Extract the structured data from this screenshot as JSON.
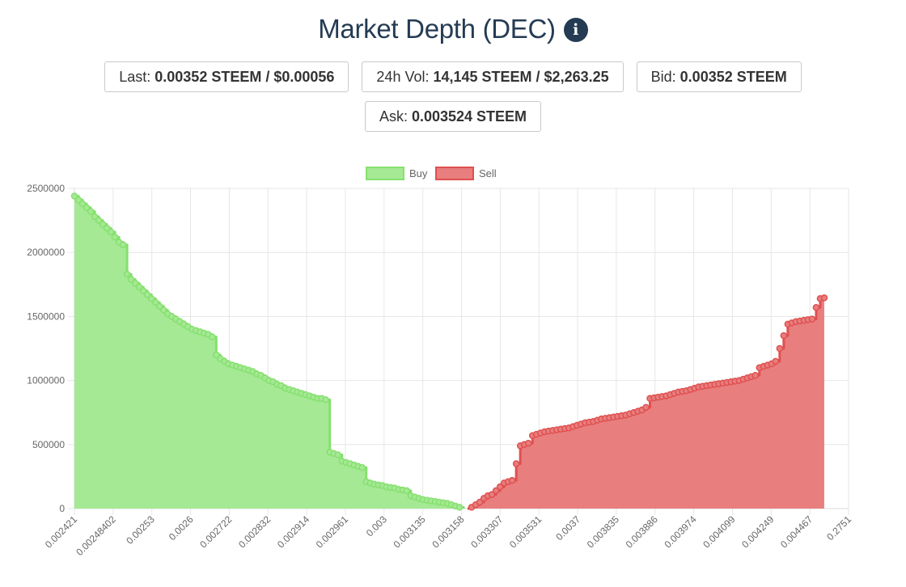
{
  "header": {
    "title": "Market Depth (DEC)",
    "info_icon": "info-icon",
    "info_glyph": "i"
  },
  "stats": {
    "last": {
      "label": "Last:",
      "value": "0.00352 STEEM / $0.00056"
    },
    "volume": {
      "label": "24h Vol:",
      "value": "14,145 STEEM / $2,263.25"
    },
    "bid": {
      "label": "Bid:",
      "value": "0.00352 STEEM"
    },
    "ask": {
      "label": "Ask:",
      "value": "0.003524 STEEM"
    }
  },
  "colors": {
    "buy_fill": "#a5e994",
    "buy_line": "#86e06f",
    "sell_fill": "#e87e7e",
    "sell_line": "#e05050",
    "grid": "#e6e6e6",
    "tick_text": "#666666",
    "title": "#243b53"
  },
  "chart_data": {
    "type": "area",
    "title": "",
    "xlabel": "",
    "ylabel": "",
    "ylim": [
      0,
      2500000
    ],
    "y_ticks": [
      "2500000",
      "2000000",
      "1500000",
      "1000000",
      "500000",
      "0"
    ],
    "x_tick_labels": [
      "0.002421",
      "0.00248402",
      "0.00253",
      "0.0026",
      "0.002722",
      "0.002832",
      "0.002914",
      "0.002961",
      "0.003",
      "0.003135",
      "0.003158",
      "0.003307",
      "0.003531",
      "0.0037",
      "0.003835",
      "0.003886",
      "0.003974",
      "0.004099",
      "0.004249",
      "0.004467",
      "0.2751"
    ],
    "grid": true,
    "legend_position": "top-center",
    "series": [
      {
        "name": "Buy",
        "values": [
          2440000,
          2410000,
          2380000,
          2350000,
          2320000,
          2280000,
          2250000,
          2220000,
          2190000,
          2160000,
          2120000,
          2080000,
          2060000,
          1830000,
          1790000,
          1760000,
          1730000,
          1700000,
          1670000,
          1640000,
          1610000,
          1580000,
          1550000,
          1520000,
          1500000,
          1480000,
          1460000,
          1440000,
          1420000,
          1400000,
          1390000,
          1380000,
          1370000,
          1360000,
          1340000,
          1200000,
          1170000,
          1150000,
          1130000,
          1120000,
          1110000,
          1100000,
          1090000,
          1080000,
          1070000,
          1050000,
          1040000,
          1020000,
          1000000,
          990000,
          970000,
          960000,
          940000,
          930000,
          920000,
          910000,
          900000,
          890000,
          880000,
          870000,
          860000,
          860000,
          850000,
          440000,
          430000,
          420000,
          370000,
          360000,
          350000,
          340000,
          330000,
          320000,
          210000,
          200000,
          190000,
          185000,
          180000,
          170000,
          165000,
          160000,
          150000,
          145000,
          140000,
          100000,
          90000,
          80000,
          70000,
          65000,
          60000,
          55000,
          50000,
          45000,
          40000,
          30000,
          20000,
          10000,
          0,
          0,
          0,
          0,
          0,
          0,
          0,
          0,
          0,
          0,
          0,
          0,
          0,
          0,
          0,
          0,
          0,
          0,
          0,
          0,
          0,
          0,
          0,
          0,
          0,
          0,
          0,
          0,
          0,
          0,
          0,
          0,
          0,
          0,
          0,
          0,
          0,
          0,
          0,
          0,
          0,
          0,
          0,
          0,
          0,
          0,
          0,
          0,
          0,
          0,
          0,
          0,
          0,
          0,
          0,
          0,
          0,
          0,
          0,
          0,
          0,
          0,
          0,
          0,
          0,
          0,
          0,
          0,
          0,
          0,
          0,
          0,
          0,
          0,
          0,
          0,
          0,
          0,
          0,
          0,
          0,
          0,
          0,
          0,
          0,
          0,
          0,
          0,
          0,
          0,
          0,
          0,
          0,
          0,
          0,
          0
        ]
      },
      {
        "name": "Sell",
        "values": [
          0,
          0,
          0,
          0,
          0,
          0,
          0,
          0,
          0,
          0,
          0,
          0,
          0,
          0,
          0,
          0,
          0,
          0,
          0,
          0,
          0,
          0,
          0,
          0,
          0,
          0,
          0,
          0,
          0,
          0,
          0,
          0,
          0,
          0,
          0,
          0,
          0,
          0,
          0,
          0,
          0,
          0,
          0,
          0,
          0,
          0,
          0,
          0,
          0,
          0,
          0,
          0,
          0,
          0,
          0,
          0,
          0,
          0,
          0,
          0,
          0,
          0,
          0,
          0,
          0,
          0,
          0,
          0,
          0,
          0,
          0,
          0,
          0,
          0,
          0,
          0,
          0,
          0,
          0,
          0,
          0,
          0,
          0,
          0,
          0,
          0,
          0,
          0,
          0,
          0,
          0,
          0,
          0,
          0,
          0,
          0,
          0,
          0,
          10000,
          30000,
          50000,
          80000,
          100000,
          110000,
          140000,
          170000,
          200000,
          210000,
          220000,
          350000,
          490000,
          500000,
          510000,
          570000,
          580000,
          590000,
          600000,
          605000,
          610000,
          615000,
          620000,
          625000,
          630000,
          640000,
          650000,
          660000,
          670000,
          675000,
          680000,
          690000,
          700000,
          705000,
          710000,
          715000,
          720000,
          725000,
          730000,
          740000,
          750000,
          760000,
          770000,
          790000,
          860000,
          865000,
          870000,
          875000,
          880000,
          890000,
          900000,
          910000,
          915000,
          920000,
          930000,
          940000,
          950000,
          955000,
          960000,
          965000,
          970000,
          975000,
          980000,
          985000,
          990000,
          995000,
          1000000,
          1010000,
          1020000,
          1030000,
          1040000,
          1100000,
          1110000,
          1120000,
          1130000,
          1150000,
          1250000,
          1350000,
          1440000,
          1450000,
          1460000,
          1465000,
          1470000,
          1475000,
          1480000,
          1570000,
          1640000,
          1645000
        ]
      }
    ]
  }
}
